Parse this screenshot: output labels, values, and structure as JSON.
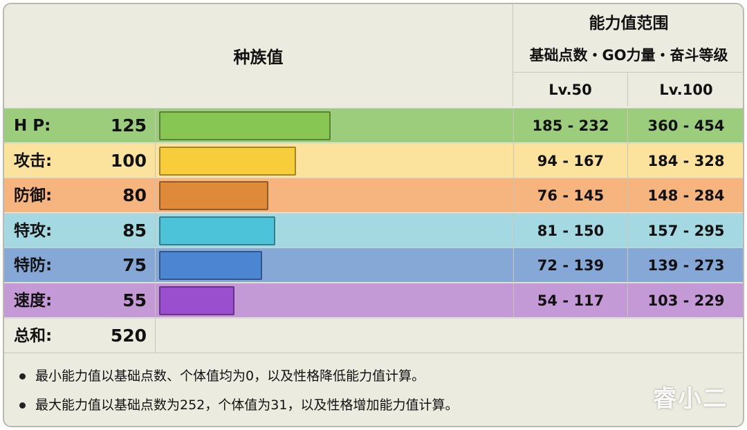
{
  "header": {
    "base_stats_label": "种族值",
    "range_title": "能力值范围",
    "range_subtitle": "基础点数・GO力量・奋斗等级",
    "lv50_label": "Lv.50",
    "lv100_label": "Lv.100"
  },
  "stats": [
    {
      "label": "H P:",
      "value": "125",
      "base": 125,
      "lv50": "185 - 232",
      "lv100": "360 - 454",
      "row_color": "#9ccd7d",
      "bar_color": "#88c653"
    },
    {
      "label": "攻击:",
      "value": "100",
      "base": 100,
      "lv50": "94 - 167",
      "lv100": "184 - 328",
      "row_color": "#fbe29d",
      "bar_color": "#f8cd3b"
    },
    {
      "label": "防御:",
      "value": "80",
      "base": 80,
      "lv50": "76 - 145",
      "lv100": "148 - 284",
      "row_color": "#f6b57f",
      "bar_color": "#de8a3a"
    },
    {
      "label": "特攻:",
      "value": "85",
      "base": 85,
      "lv50": "81 - 150",
      "lv100": "157 - 295",
      "row_color": "#a4d9e1",
      "bar_color": "#4cc3d8"
    },
    {
      "label": "特防:",
      "value": "75",
      "base": 75,
      "lv50": "72 - 139",
      "lv100": "139 - 273",
      "row_color": "#86a8d6",
      "bar_color": "#4c86d2"
    },
    {
      "label": "速度:",
      "value": "55",
      "base": 55,
      "lv50": "54 - 117",
      "lv100": "103 - 229",
      "row_color": "#c49ad6",
      "bar_color": "#9a4fcf"
    }
  ],
  "total": {
    "label": "总和:",
    "value": "520"
  },
  "notes": [
    "最小能力值以基础点数、个体值均为0，以及性格降低能力值计算。",
    "最大能力值以基础点数为252，个体值为31，以及性格增加能力值计算。"
  ],
  "watermark": "睿小二"
}
